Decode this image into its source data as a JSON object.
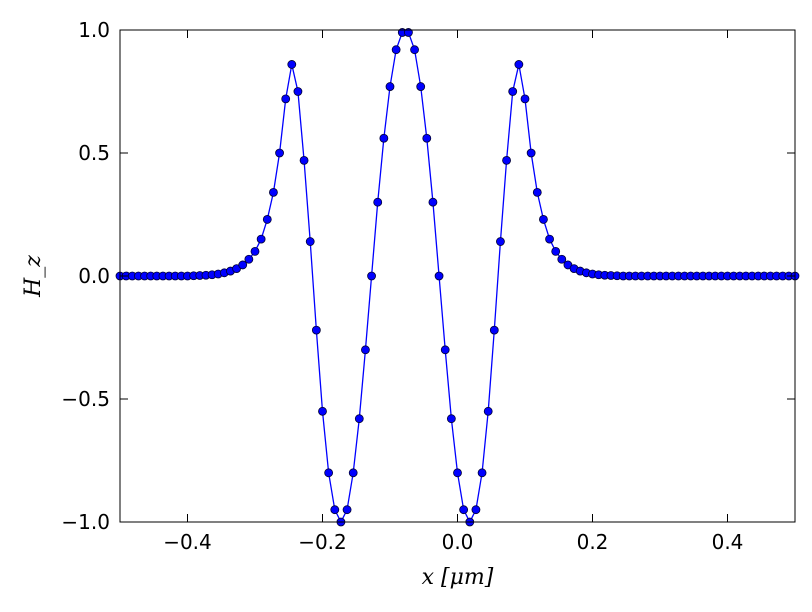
{
  "chart_data": {
    "type": "line",
    "xlabel": "x [μm]",
    "ylabel": "H_z",
    "xlim": [
      -0.5,
      0.5
    ],
    "ylim": [
      -1.0,
      1.0
    ],
    "xticks": [
      -0.4,
      -0.2,
      0.0,
      0.2,
      0.4
    ],
    "xtick_labels": [
      "−0.4",
      "−0.2",
      "0.0",
      "0.2",
      "0.4"
    ],
    "yticks": [
      -1.0,
      -0.5,
      0.0,
      0.5,
      1.0
    ],
    "ytick_labels": [
      "−1.0",
      "−0.5",
      "0.0",
      "0.5",
      "1.0"
    ],
    "grid": false,
    "colors": {
      "line": "#0000ff",
      "marker_fill": "#0000ff",
      "marker_edge": "#000033"
    },
    "series": [
      {
        "marker": "circle",
        "x": [
          -0.5,
          -0.4909,
          -0.4818,
          -0.4727,
          -0.4636,
          -0.4545,
          -0.4455,
          -0.4364,
          -0.4273,
          -0.4182,
          -0.4091,
          -0.4,
          -0.3909,
          -0.3818,
          -0.3727,
          -0.3636,
          -0.3545,
          -0.3455,
          -0.3364,
          -0.3273,
          -0.3182,
          -0.3091,
          -0.3,
          -0.2909,
          -0.2818,
          -0.2727,
          -0.2636,
          -0.2545,
          -0.2455,
          -0.2364,
          -0.2273,
          -0.2182,
          -0.2091,
          -0.2,
          -0.1909,
          -0.1818,
          -0.1727,
          -0.1636,
          -0.1545,
          -0.1455,
          -0.1364,
          -0.1273,
          -0.1182,
          -0.1091,
          -0.1,
          -0.0909,
          -0.0818,
          -0.0727,
          -0.0636,
          -0.0545,
          -0.0455,
          -0.0364,
          -0.0273,
          -0.0182,
          -0.0091,
          0.0,
          0.0091,
          0.0182,
          0.0273,
          0.0364,
          0.0455,
          0.0545,
          0.0636,
          0.0727,
          0.0818,
          0.0909,
          0.1,
          0.1091,
          0.1182,
          0.1273,
          0.1364,
          0.1455,
          0.1545,
          0.1636,
          0.1727,
          0.1818,
          0.1909,
          0.2,
          0.2091,
          0.2182,
          0.2273,
          0.2364,
          0.2455,
          0.2545,
          0.2636,
          0.2727,
          0.2818,
          0.2909,
          0.3,
          0.3091,
          0.3182,
          0.3273,
          0.3364,
          0.3455,
          0.3545,
          0.3636,
          0.3727,
          0.3818,
          0.3909,
          0.4,
          0.4091,
          0.4182,
          0.4273,
          0.4364,
          0.4455,
          0.4545,
          0.4636,
          0.4727,
          0.4818,
          0.4909,
          0.5
        ],
        "y": [
          0.0,
          0.0,
          0.0,
          0.0,
          0.0,
          0.0,
          0.0,
          0.0,
          0.0,
          0.0,
          0.0,
          0.0,
          0.001,
          0.002,
          0.003,
          0.005,
          0.008,
          0.013,
          0.02,
          0.03,
          0.045,
          0.068,
          0.1,
          0.15,
          0.23,
          0.34,
          0.5,
          0.72,
          0.86,
          0.75,
          0.47,
          0.14,
          -0.22,
          -0.55,
          -0.8,
          -0.95,
          -1.0,
          -0.95,
          -0.8,
          -0.58,
          -0.3,
          0.0,
          0.3,
          0.56,
          0.77,
          0.92,
          0.99,
          0.99,
          0.92,
          0.77,
          0.56,
          0.3,
          0.0,
          -0.3,
          -0.58,
          -0.8,
          -0.95,
          -1.0,
          -0.95,
          -0.8,
          -0.55,
          -0.22,
          0.14,
          0.47,
          0.75,
          0.86,
          0.72,
          0.5,
          0.34,
          0.23,
          0.15,
          0.1,
          0.068,
          0.045,
          0.03,
          0.02,
          0.013,
          0.008,
          0.005,
          0.003,
          0.002,
          0.001,
          0.0,
          0.0,
          0.0,
          0.0,
          0.0,
          0.0,
          0.0,
          0.0,
          0.0,
          0.0,
          0.0,
          0.0,
          0.0,
          0.0,
          0.0,
          0.0,
          0.0,
          0.0,
          0.0,
          0.0,
          0.0,
          0.0,
          0.0,
          0.0,
          0.0,
          0.0,
          0.0,
          0.0,
          0.0
        ]
      }
    ]
  }
}
